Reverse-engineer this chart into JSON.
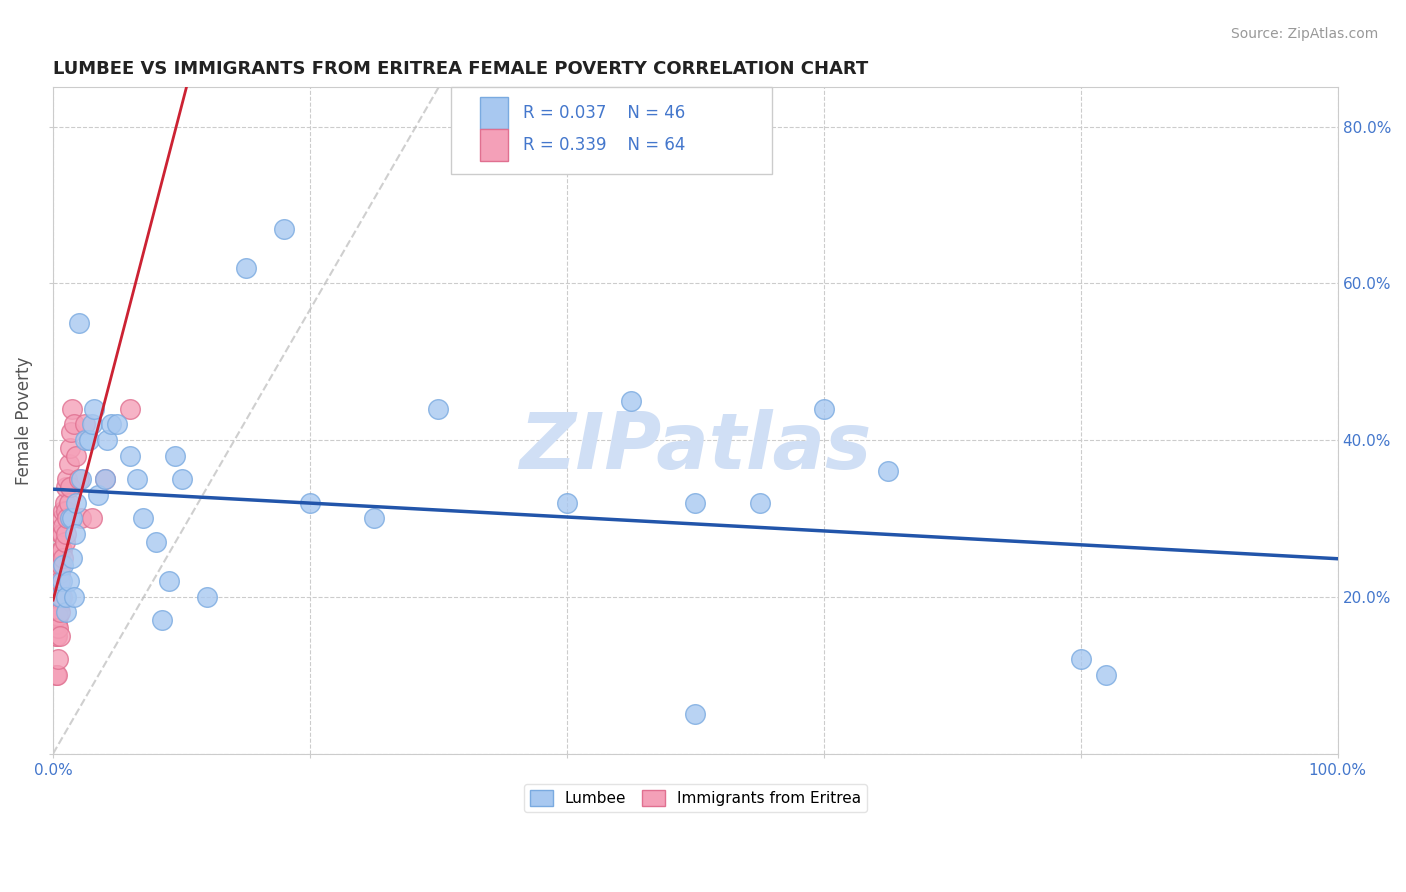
{
  "title": "LUMBEE VS IMMIGRANTS FROM ERITREA FEMALE POVERTY CORRELATION CHART",
  "source": "Source: ZipAtlas.com",
  "ylabel": "Female Poverty",
  "xlim": [
    0.0,
    1.0
  ],
  "ylim": [
    0.0,
    0.85
  ],
  "xticks": [
    0.0,
    0.2,
    0.4,
    0.6,
    0.8,
    1.0
  ],
  "xticklabels": [
    "0.0%",
    "",
    "",
    "",
    "",
    "100.0%"
  ],
  "yticks": [
    0.0,
    0.2,
    0.4,
    0.6,
    0.8
  ],
  "yticklabels_right": [
    "",
    "20.0%",
    "40.0%",
    "60.0%",
    "80.0%"
  ],
  "lumbee_color": "#A8C8F0",
  "eritrea_color": "#F4A0B8",
  "lumbee_edge": "#7AAAE0",
  "eritrea_edge": "#E07090",
  "trend_lumbee_color": "#2255AA",
  "trend_eritrea_color": "#CC2233",
  "watermark_color": "#D0DFF5",
  "R_lumbee": 0.037,
  "N_lumbee": 46,
  "R_eritrea": 0.339,
  "N_eritrea": 64,
  "lumbee_x": [
    0.005,
    0.007,
    0.008,
    0.01,
    0.01,
    0.012,
    0.013,
    0.015,
    0.015,
    0.016,
    0.017,
    0.018,
    0.02,
    0.022,
    0.025,
    0.028,
    0.03,
    0.032,
    0.035,
    0.04,
    0.042,
    0.045,
    0.05,
    0.06,
    0.065,
    0.07,
    0.08,
    0.085,
    0.09,
    0.095,
    0.1,
    0.12,
    0.15,
    0.18,
    0.2,
    0.25,
    0.3,
    0.4,
    0.45,
    0.5,
    0.55,
    0.6,
    0.65,
    0.8,
    0.82,
    0.5
  ],
  "lumbee_y": [
    0.2,
    0.22,
    0.24,
    0.18,
    0.2,
    0.22,
    0.3,
    0.25,
    0.3,
    0.2,
    0.28,
    0.32,
    0.55,
    0.35,
    0.4,
    0.4,
    0.42,
    0.44,
    0.33,
    0.35,
    0.4,
    0.42,
    0.42,
    0.38,
    0.35,
    0.3,
    0.27,
    0.17,
    0.22,
    0.38,
    0.35,
    0.2,
    0.62,
    0.67,
    0.32,
    0.3,
    0.44,
    0.32,
    0.45,
    0.32,
    0.32,
    0.44,
    0.36,
    0.12,
    0.1,
    0.05
  ],
  "eritrea_x": [
    0.001,
    0.001,
    0.001,
    0.001,
    0.002,
    0.002,
    0.002,
    0.002,
    0.002,
    0.002,
    0.002,
    0.002,
    0.003,
    0.003,
    0.003,
    0.003,
    0.003,
    0.003,
    0.003,
    0.003,
    0.004,
    0.004,
    0.004,
    0.004,
    0.004,
    0.004,
    0.005,
    0.005,
    0.005,
    0.005,
    0.005,
    0.005,
    0.006,
    0.006,
    0.006,
    0.006,
    0.007,
    0.007,
    0.007,
    0.007,
    0.008,
    0.008,
    0.008,
    0.009,
    0.009,
    0.01,
    0.01,
    0.01,
    0.011,
    0.011,
    0.012,
    0.012,
    0.013,
    0.013,
    0.014,
    0.015,
    0.016,
    0.018,
    0.02,
    0.022,
    0.025,
    0.03,
    0.04,
    0.06
  ],
  "eritrea_y": [
    0.19,
    0.2,
    0.195,
    0.185,
    0.2,
    0.195,
    0.19,
    0.185,
    0.175,
    0.165,
    0.15,
    0.1,
    0.2,
    0.195,
    0.19,
    0.185,
    0.175,
    0.165,
    0.15,
    0.1,
    0.2,
    0.195,
    0.185,
    0.175,
    0.16,
    0.12,
    0.25,
    0.23,
    0.22,
    0.2,
    0.18,
    0.15,
    0.28,
    0.26,
    0.24,
    0.2,
    0.3,
    0.28,
    0.26,
    0.2,
    0.31,
    0.29,
    0.25,
    0.32,
    0.27,
    0.34,
    0.31,
    0.28,
    0.35,
    0.3,
    0.37,
    0.32,
    0.39,
    0.34,
    0.41,
    0.44,
    0.42,
    0.38,
    0.35,
    0.3,
    0.42,
    0.3,
    0.35,
    0.44
  ]
}
